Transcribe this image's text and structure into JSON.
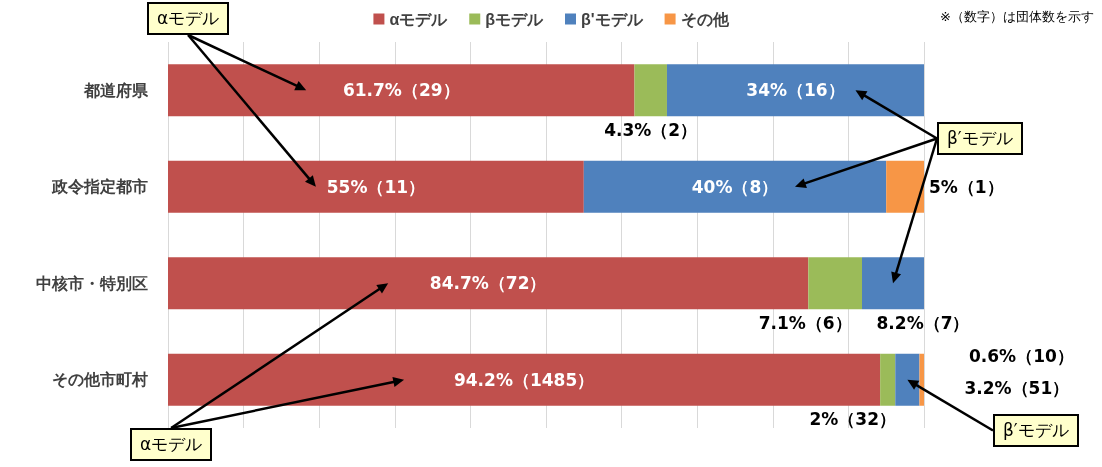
{
  "chart_data": {
    "type": "bar",
    "orientation": "horizontal",
    "stacked": true,
    "categories": [
      "都道府県",
      "政令指定都市",
      "中核市・特別区",
      "その他市町村"
    ],
    "series": [
      {
        "name": "αモデル",
        "color": "#c0504d",
        "values": [
          61.7,
          55,
          84.7,
          94.2
        ],
        "value_labels": [
          "61.7%（29）",
          "55%（11）",
          "84.7%（72）",
          "94.2%（1485）"
        ]
      },
      {
        "name": "βモデル",
        "color": "#9bbb59",
        "values": [
          4.3,
          0,
          7.1,
          2
        ],
        "value_labels": [
          "4.3%（2）",
          null,
          "7.1%（6）",
          "2%（32）"
        ]
      },
      {
        "name": "β'モデル",
        "color": "#4f81bd",
        "values": [
          34,
          40,
          8.2,
          3.2
        ],
        "value_labels": [
          "34%（16）",
          "40%（8）",
          "8.2%（7）",
          "3.2%（51）"
        ]
      },
      {
        "name": "その他",
        "color": "#f79646",
        "values": [
          0,
          5,
          0,
          0.6
        ],
        "value_labels": [
          null,
          "5%（1）",
          null,
          "0.6%（10）"
        ]
      }
    ],
    "xlim": [
      0,
      100
    ],
    "xticks": [
      {
        "value": 0,
        "label": null
      },
      {
        "value": 10,
        "label": null
      },
      {
        "value": 20,
        "label": null
      },
      {
        "value": 30,
        "label": null
      },
      {
        "value": 40,
        "label": null
      },
      {
        "value": 50,
        "label": null
      },
      {
        "value": 60,
        "label": null
      },
      {
        "value": 70,
        "label": null
      },
      {
        "value": 80,
        "label": null
      },
      {
        "value": 90,
        "label": null
      },
      {
        "value": 100,
        "label": null
      }
    ],
    "tick_labels": "y",
    "grid": "x",
    "legend": "top",
    "annotations": [
      "※（数字）は団体数を示す",
      "αモデル",
      "β′モデル",
      "αモデル",
      "β′モデル"
    ]
  }
}
